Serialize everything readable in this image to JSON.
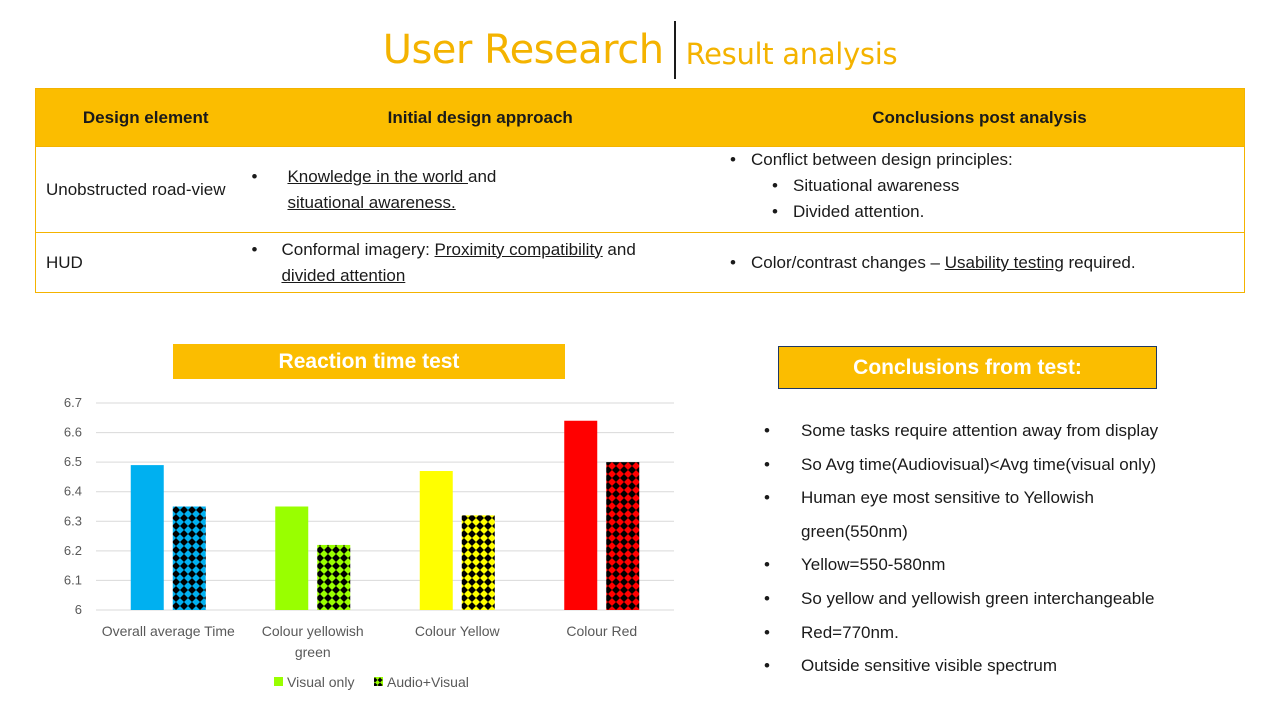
{
  "title": {
    "main": "User Research",
    "sub": "Result analysis"
  },
  "table": {
    "headers": [
      "Design element",
      "Initial design approach",
      "Conclusions  post analysis"
    ],
    "rows": [
      {
        "element": "Unobstructed road-view",
        "approach": {
          "u1": "Knowledge  in the world ",
          "t1": "and",
          "u2": "situational awareness."
        },
        "conclusion": {
          "lead": "Conflict between design principles:",
          "subs": [
            "Situational awareness",
            "Divided attention."
          ]
        }
      },
      {
        "element": "HUD",
        "approach": {
          "t1": "Conformal imagery: ",
          "u1": "Proximity compatibility",
          "t2": " and",
          "u2": "divided  attention"
        },
        "conclusion": {
          "t1": "Color/contrast  changes – ",
          "u1": "Usability testing",
          "t2": " required."
        }
      }
    ]
  },
  "bullet": "•",
  "chart_title": "Reaction time test",
  "conclusions_title": "Conclusions  from test:",
  "conclusions": [
    "Some tasks require attention away from display",
    "So Avg time(Audiovisual)<Avg time(visual only)",
    "Human eye most sensitive to Yellowish",
    "green(550nm)",
    "Yellow=550-580nm",
    "So yellow and yellowish green interchangeable",
    "Red=770nm.",
    "Outside sensitive visible spectrum"
  ],
  "conclusion_bullets": [
    true,
    true,
    true,
    false,
    true,
    true,
    true,
    true
  ],
  "chart_data": {
    "type": "bar",
    "categories": [
      "Overall average Time",
      "Colour yellowish green",
      "Colour Yellow",
      "Colour Red"
    ],
    "category_lines": [
      [
        "Overall average Time"
      ],
      [
        "Colour yellowish",
        "green"
      ],
      [
        "Colour Yellow"
      ],
      [
        "Colour Red"
      ]
    ],
    "series": [
      {
        "name": "Visual only",
        "values": [
          6.49,
          6.35,
          6.47,
          6.64
        ],
        "colors": [
          "#00b0f0",
          "#99ff00",
          "#ffff00",
          "#ff0000"
        ],
        "pattern": "solid"
      },
      {
        "name": "Audio+Visual",
        "values": [
          6.35,
          6.22,
          6.32,
          6.5
        ],
        "colors": [
          "#00b0f0",
          "#99ff00",
          "#ffff00",
          "#ff0000"
        ],
        "pattern": "diamond-checker"
      }
    ],
    "ylim": [
      6,
      6.7
    ],
    "yticks": [
      "6",
      "6.1",
      "6.2",
      "6.3",
      "6.4",
      "6.5",
      "6.6",
      "6.7"
    ],
    "legend_colors": [
      "#99ff00",
      "#99ff00"
    ],
    "grid": true,
    "legend_position": "bottom"
  }
}
